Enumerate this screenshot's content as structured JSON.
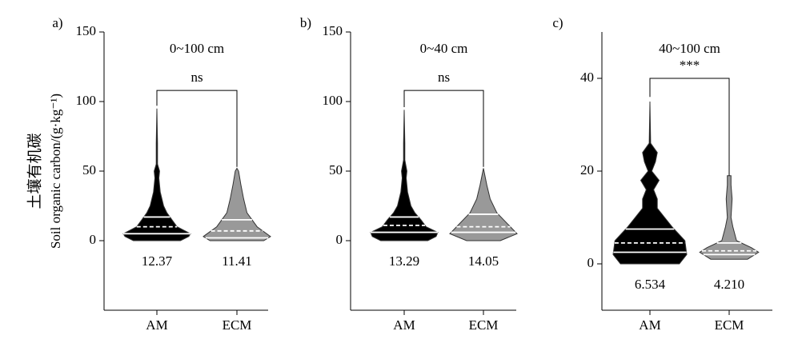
{
  "chart_data": [
    {
      "type": "violin",
      "label": "a)",
      "title": "0~100 cm",
      "ylabel": [
        "土壤有机碳",
        "Soil organic carbon/(g·kg⁻¹)"
      ],
      "categories": [
        "AM",
        "ECM"
      ],
      "ylim": [
        -50,
        150
      ],
      "yticks": [
        0,
        50,
        100,
        150
      ],
      "violins": [
        {
          "color": "#000000",
          "profile": {
            "y": [
              0,
              3,
              5,
              10,
              15,
              20,
              25,
              30,
              35,
              45,
              50,
              55,
              70,
              95
            ],
            "density": [
              0.7,
              0.95,
              1.0,
              0.6,
              0.45,
              0.3,
              0.2,
              0.15,
              0.1,
              0.06,
              0.08,
              0.02,
              0.02,
              0
            ]
          },
          "quartiles": [
            5,
            10,
            17
          ]
        },
        {
          "color": "#999999",
          "profile": {
            "y": [
              0,
              3,
              10,
              20,
              30,
              40,
              50,
              52
            ],
            "density": [
              0.8,
              1.0,
              0.6,
              0.3,
              0.2,
              0.12,
              0.05,
              0
            ]
          },
          "quartiles": [
            2,
            7,
            15
          ]
        }
      ],
      "means": [
        12.37,
        11.41
      ],
      "mean_labels": [
        "12.37",
        "11.41"
      ],
      "bracket": {
        "y": 108,
        "left": 97,
        "right": 53,
        "label": "ns"
      }
    },
    {
      "type": "violin",
      "label": "b)",
      "title": "0~40 cm",
      "categories": [
        "AM",
        "ECM"
      ],
      "ylim": [
        -50,
        150
      ],
      "yticks": [
        0,
        50,
        100,
        150
      ],
      "violins": [
        {
          "color": "#000000",
          "profile": {
            "y": [
              0,
              3,
              6,
              10,
              15,
              20,
              25,
              30,
              35,
              45,
              50,
              58,
              70,
              94
            ],
            "density": [
              0.7,
              0.95,
              1.0,
              0.65,
              0.5,
              0.32,
              0.2,
              0.15,
              0.1,
              0.06,
              0.08,
              0.02,
              0.02,
              0
            ]
          },
          "quartiles": [
            6,
            11,
            17
          ]
        },
        {
          "color": "#999999",
          "profile": {
            "y": [
              0,
              5,
              10,
              20,
              30,
              40,
              52
            ],
            "density": [
              0.5,
              1.0,
              0.8,
              0.4,
              0.2,
              0.1,
              0
            ]
          },
          "quartiles": [
            6,
            10,
            19
          ]
        }
      ],
      "means": [
        13.29,
        14.05
      ],
      "mean_labels": [
        "13.29",
        "14.05"
      ],
      "bracket": {
        "y": 108,
        "left": 96,
        "right": 53,
        "label": "ns"
      }
    },
    {
      "type": "violin",
      "label": "c)",
      "title": "40~100 cm",
      "categories": [
        "AM",
        "ECM"
      ],
      "ylim": [
        -10,
        50
      ],
      "yticks": [
        0,
        20,
        40
      ],
      "violins": [
        {
          "color": "#000000",
          "profile": {
            "y": [
              0,
              2,
              5,
              8,
              10,
              12,
              14,
              16,
              18,
              20,
              22,
              24,
              26,
              35
            ],
            "density": [
              0.8,
              1.0,
              0.95,
              0.6,
              0.4,
              0.2,
              0.2,
              0.1,
              0.25,
              0.05,
              0.15,
              0.2,
              0.02,
              0
            ]
          },
          "quartiles": [
            2.5,
            4.5,
            7.5
          ]
        },
        {
          "color": "#999999",
          "profile": {
            "y": [
              1,
              2.5,
              3.5,
              5,
              8,
              10,
              14,
              17,
              19
            ],
            "density": [
              0.5,
              0.8,
              0.6,
              0.2,
              0.1,
              0.05,
              0.08,
              0.05,
              0.05
            ]
          },
          "quartiles": [
            2,
            2.8,
            4.5
          ]
        }
      ],
      "means": [
        6.534,
        4.21
      ],
      "mean_labels": [
        "6.534",
        "4.210"
      ],
      "bracket": {
        "y": 40,
        "left": 36,
        "right": 19,
        "label": "***"
      }
    }
  ]
}
